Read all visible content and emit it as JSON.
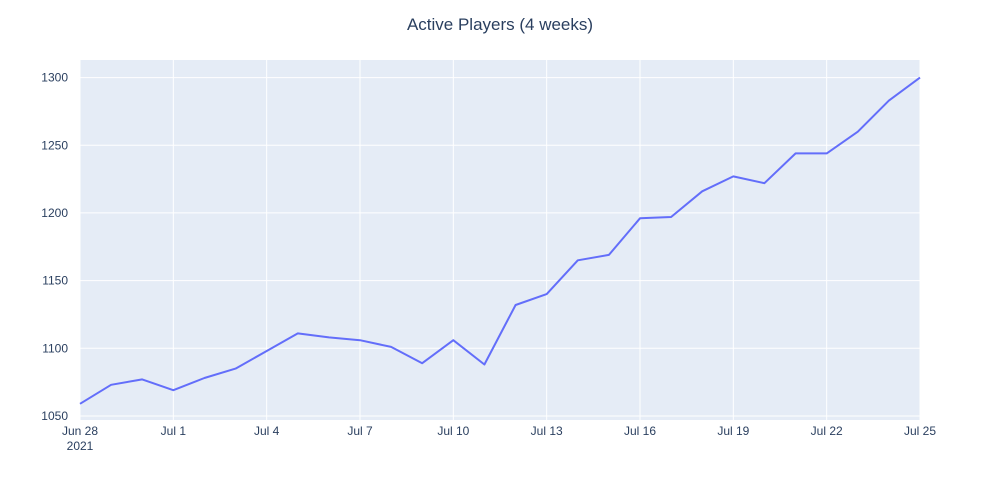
{
  "chart_data": {
    "type": "line",
    "title": "Active Players (4 weeks)",
    "xlabel": "",
    "ylabel": "",
    "x": [
      "2021-06-28",
      "2021-06-29",
      "2021-06-30",
      "2021-07-01",
      "2021-07-02",
      "2021-07-03",
      "2021-07-04",
      "2021-07-05",
      "2021-07-06",
      "2021-07-07",
      "2021-07-08",
      "2021-07-09",
      "2021-07-10",
      "2021-07-11",
      "2021-07-12",
      "2021-07-13",
      "2021-07-14",
      "2021-07-15",
      "2021-07-16",
      "2021-07-17",
      "2021-07-18",
      "2021-07-19",
      "2021-07-20",
      "2021-07-21",
      "2021-07-22",
      "2021-07-23",
      "2021-07-24",
      "2021-07-25"
    ],
    "series": [
      {
        "values": [
          1059,
          1073,
          1077,
          1069,
          1078,
          1085,
          1098,
          1111,
          1108,
          1106,
          1101,
          1089,
          1106,
          1088,
          1132,
          1140,
          1165,
          1169,
          1196,
          1197,
          1216,
          1227,
          1222,
          1244,
          1244,
          1260,
          1283,
          1300
        ]
      }
    ],
    "xlim": [
      "2021-06-28",
      "2021-07-25"
    ],
    "ylim": [
      1047,
      1313
    ],
    "yticks": [
      1050,
      1100,
      1150,
      1200,
      1250,
      1300
    ],
    "xticks": [
      {
        "date": "2021-06-28",
        "label": "Jun 28",
        "sublabel": "2021"
      },
      {
        "date": "2021-07-01",
        "label": "Jul 1"
      },
      {
        "date": "2021-07-04",
        "label": "Jul 4"
      },
      {
        "date": "2021-07-07",
        "label": "Jul 7"
      },
      {
        "date": "2021-07-10",
        "label": "Jul 10"
      },
      {
        "date": "2021-07-13",
        "label": "Jul 13"
      },
      {
        "date": "2021-07-16",
        "label": "Jul 16"
      },
      {
        "date": "2021-07-19",
        "label": "Jul 19"
      },
      {
        "date": "2021-07-22",
        "label": "Jul 22"
      },
      {
        "date": "2021-07-25",
        "label": "Jul 25"
      }
    ],
    "grid": true,
    "legend": false,
    "colors": {
      "line": "#636efa",
      "plot_background": "#e5ecf6",
      "grid": "#ffffff",
      "text": "#2a3f5f"
    }
  }
}
